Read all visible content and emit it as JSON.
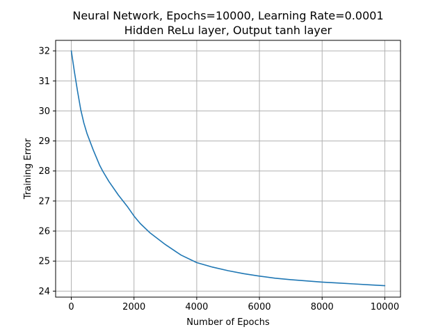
{
  "chart_data": {
    "type": "line",
    "title": "Neural Network, Epochs=10000, Learning Rate=0.0001",
    "subtitle": "Hidden ReLu layer, Output tanh layer",
    "xlabel": "Number of Epochs",
    "ylabel": "Training Error",
    "xlim": [
      -500,
      10500
    ],
    "ylim": [
      23.8,
      32.35
    ],
    "xticks": [
      0,
      2000,
      4000,
      6000,
      8000,
      10000
    ],
    "xtick_labels": [
      "0",
      "2000",
      "4000",
      "6000",
      "8000",
      "10000"
    ],
    "yticks": [
      24,
      25,
      26,
      27,
      28,
      29,
      30,
      31,
      32
    ],
    "ytick_labels": [
      "24",
      "25",
      "26",
      "27",
      "28",
      "29",
      "30",
      "31",
      "32"
    ],
    "grid": true,
    "series": [
      {
        "color": "#1f77b4",
        "x": [
          0,
          100,
          200,
          300,
          400,
          500,
          700,
          900,
          1000,
          1200,
          1500,
          1800,
          2000,
          2200,
          2500,
          3000,
          3500,
          4000,
          4500,
          5000,
          5500,
          6000,
          6500,
          7000,
          7500,
          8000,
          8500,
          9000,
          9500,
          10000
        ],
        "y": [
          32.0,
          31.3,
          30.65,
          30.05,
          29.6,
          29.25,
          28.7,
          28.2,
          28.0,
          27.65,
          27.2,
          26.8,
          26.5,
          26.25,
          25.95,
          25.55,
          25.2,
          24.95,
          24.8,
          24.68,
          24.58,
          24.5,
          24.43,
          24.38,
          24.34,
          24.3,
          24.27,
          24.24,
          24.21,
          24.18
        ]
      }
    ]
  }
}
